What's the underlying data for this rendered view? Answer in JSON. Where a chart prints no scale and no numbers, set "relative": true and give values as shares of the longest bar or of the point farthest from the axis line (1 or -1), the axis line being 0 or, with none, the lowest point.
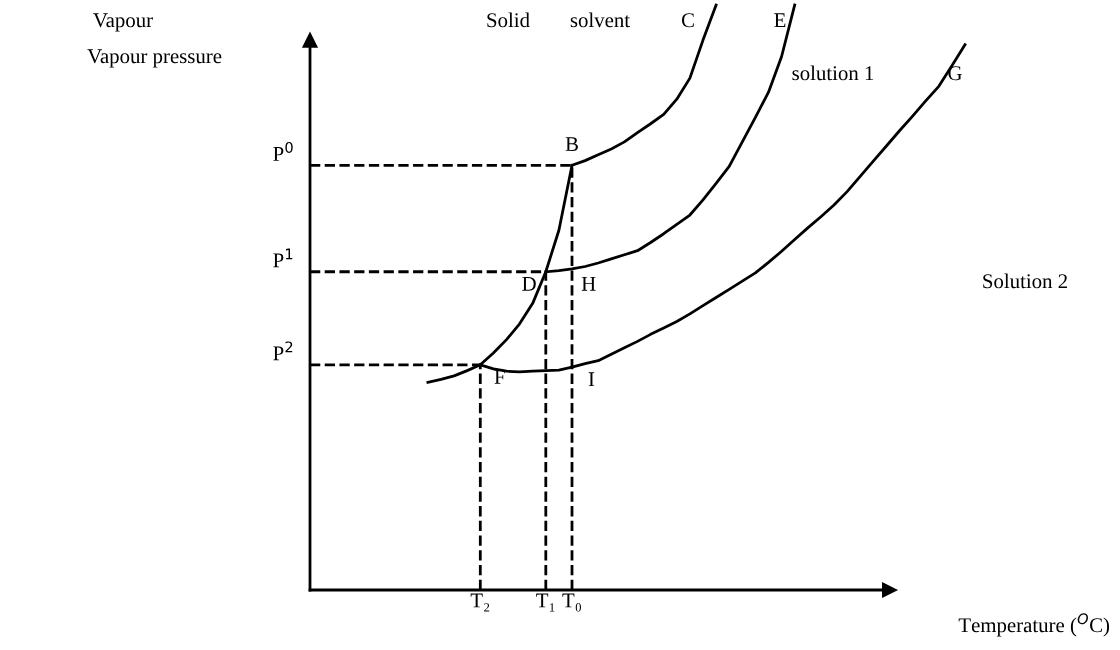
{
  "chart_data": {
    "type": "line",
    "relative": true,
    "ylabel": "Vapour pressure",
    "xlabel": "Temperature ($^{O}$C)",
    "grid": false,
    "legend": false,
    "marker": "none",
    "line_style": "solid",
    "categories": [
      null,
      null,
      null,
      null,
      null,
      null,
      null,
      null,
      null,
      null,
      null,
      null,
      null,
      "T₂",
      null,
      null,
      null,
      null,
      "T₁",
      null,
      "T₀",
      null,
      null,
      null,
      null,
      null,
      null,
      null,
      null,
      null,
      null,
      null,
      null,
      null,
      null,
      null,
      null,
      null,
      null,
      null,
      null,
      null,
      null,
      null,
      null,
      null,
      null,
      null,
      null,
      null,
      null
    ],
    "series": [
      {
        "color": "#000000",
        "values": [
          null,
          null,
          null,
          null,
          null,
          null,
          null,
          null,
          null,
          0.355,
          0.36,
          0.366,
          0.375,
          0.385,
          0.405,
          0.428,
          0.455,
          0.49,
          0.544,
          0.615,
          0.726,
          null,
          null,
          null,
          null,
          null,
          null,
          null,
          null,
          null,
          null,
          null,
          null,
          null,
          null,
          null,
          null,
          null,
          null,
          null,
          null,
          null,
          null,
          null,
          null,
          null,
          null,
          null,
          null,
          null,
          null
        ]
      },
      {
        "color": "#000000",
        "values": [
          null,
          null,
          null,
          null,
          null,
          null,
          null,
          null,
          null,
          null,
          null,
          null,
          null,
          null,
          null,
          null,
          null,
          null,
          null,
          null,
          0.726,
          0.734,
          0.744,
          0.754,
          0.766,
          0.782,
          0.797,
          0.813,
          0.839,
          0.875,
          0.94,
          1.0,
          null,
          null,
          null,
          null,
          null,
          null,
          null,
          null,
          null,
          null,
          null,
          null,
          null,
          null,
          null,
          null,
          null,
          null,
          null
        ]
      },
      {
        "color": "#000000",
        "values": [
          null,
          null,
          null,
          null,
          null,
          null,
          null,
          null,
          null,
          null,
          null,
          null,
          null,
          null,
          null,
          null,
          null,
          null,
          0.544,
          0.546,
          0.549,
          0.553,
          0.559,
          0.566,
          0.573,
          0.58,
          0.594,
          0.609,
          0.625,
          0.641,
          0.667,
          0.695,
          0.724,
          0.766,
          0.808,
          0.851,
          0.912,
          1.0,
          null,
          null,
          null,
          null,
          null,
          null,
          null,
          null,
          null,
          null,
          null,
          null,
          null
        ]
      },
      {
        "color": "#000000",
        "values": [
          null,
          null,
          null,
          null,
          null,
          null,
          null,
          null,
          null,
          null,
          null,
          null,
          null,
          0.385,
          0.378,
          0.374,
          0.373,
          0.374,
          0.375,
          0.376,
          0.381,
          0.387,
          0.392,
          0.403,
          0.414,
          0.425,
          0.437,
          0.448,
          0.459,
          0.472,
          0.486,
          0.5,
          0.514,
          0.528,
          0.542,
          0.56,
          0.579,
          0.599,
          0.619,
          0.638,
          0.658,
          0.681,
          0.707,
          0.733,
          0.759,
          0.785,
          0.81,
          0.836,
          0.861,
          0.896,
          0.932
        ]
      }
    ],
    "ref_lines": [
      {
        "axis": "y",
        "value": 0.726,
        "label": "P$^{0}$",
        "line_style": "dashed",
        "color": "#000000"
      },
      {
        "axis": "y",
        "value": 0.544,
        "label": "P$^{1}$",
        "line_style": "dashed",
        "color": "#000000"
      },
      {
        "axis": "y",
        "value": 0.385,
        "label": "P$^{2}$",
        "line_style": "dashed",
        "color": "#000000"
      },
      {
        "axis": "x",
        "value": "T₂",
        "line_style": "dashed",
        "color": "#000000"
      },
      {
        "axis": "x",
        "value": "T₁",
        "line_style": "dashed",
        "color": "#000000"
      },
      {
        "axis": "x",
        "value": "T₀",
        "line_style": "dashed",
        "color": "#000000"
      }
    ],
    "annotations": [
      "Vapour",
      "Solid",
      "solvent",
      "C",
      "E",
      "solution 1",
      "G",
      "Solution 2",
      {
        "text": "B",
        "x": "T₀",
        "y": 0.726
      },
      {
        "text": "D",
        "x": "T₁",
        "y": 0.544
      },
      {
        "text": "H",
        "x": "T₀",
        "y": 0.544
      },
      {
        "text": "F",
        "x": "T₂",
        "y": 0.385
      },
      {
        "text": "I",
        "x": "T₀",
        "y": 0.381
      }
    ]
  }
}
